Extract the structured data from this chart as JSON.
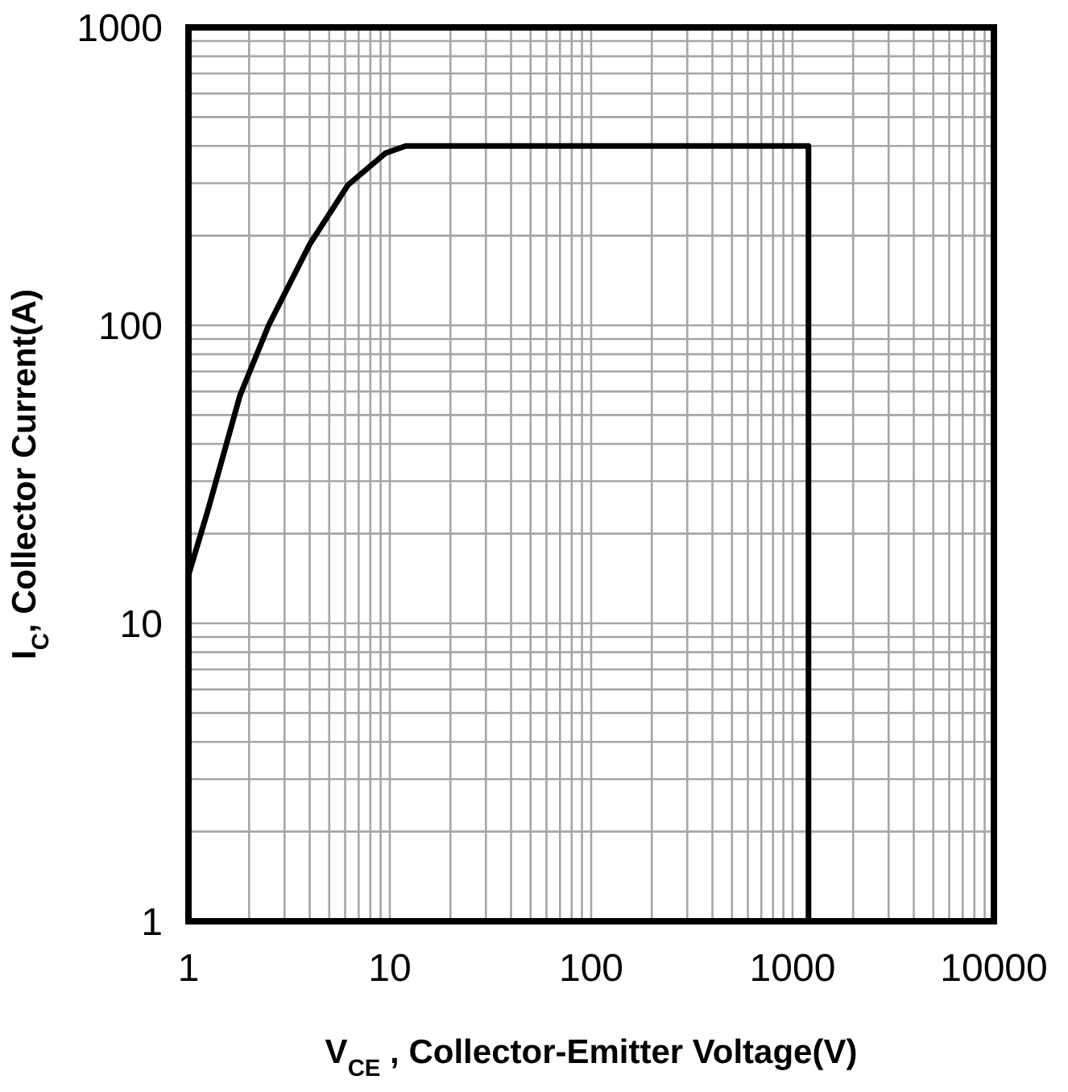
{
  "chart_data": {
    "type": "line",
    "xlabel": "V$_{CE}$ , Collector-Emitter Voltage(V)",
    "ylabel": "I$_{C}$, Collector Current(A)",
    "log": "xy",
    "grid": true,
    "marker": "none",
    "line_style": "solid",
    "xlim": [
      1,
      10000
    ],
    "ylim": [
      1,
      1000
    ],
    "xticks": [
      1,
      10,
      100,
      1000,
      10000
    ],
    "yticks": [
      1,
      10,
      100,
      1000
    ],
    "series": [
      {
        "color": "#000000",
        "x": [
          1,
          1.25,
          1.8,
          2.5,
          4,
          6.2,
          9.5,
          12,
          1200,
          1200
        ],
        "values": [
          14.5,
          24,
          58,
          100,
          187,
          296,
          378,
          400,
          400,
          1
        ]
      }
    ]
  }
}
